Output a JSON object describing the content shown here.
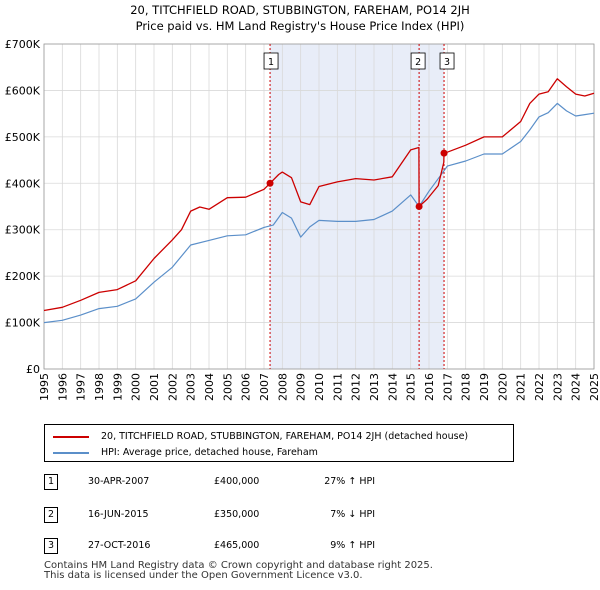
{
  "chart_data": {
    "type": "line",
    "title": "20, TITCHFIELD ROAD, STUBBINGTON, FAREHAM, PO14 2JH",
    "subtitle": "Price paid vs. HM Land Registry's House Price Index (HPI)",
    "xlim": [
      1995,
      2025
    ],
    "ylim": [
      0,
      700000
    ],
    "x_ticks": [
      1995,
      1996,
      1997,
      1998,
      1999,
      2000,
      2001,
      2002,
      2003,
      2004,
      2005,
      2006,
      2007,
      2008,
      2009,
      2010,
      2011,
      2012,
      2013,
      2014,
      2015,
      2016,
      2017,
      2018,
      2019,
      2020,
      2021,
      2022,
      2023,
      2024,
      2025
    ],
    "y_ticks": [
      0,
      100000,
      200000,
      300000,
      400000,
      500000,
      600000,
      700000
    ],
    "y_tick_labels": [
      "£0",
      "£100K",
      "£200K",
      "£300K",
      "£400K",
      "£500K",
      "£600K",
      "£700K"
    ],
    "shaded_region": [
      2007.33,
      2016.82
    ],
    "series": [
      {
        "name": "20, TITCHFIELD ROAD, STUBBINGTON, FAREHAM, PO14 2JH (detached house)",
        "color": "#cc0000",
        "x": [
          1995,
          1996,
          1997,
          1998,
          1999,
          2000,
          2001,
          2002,
          2002.5,
          2003,
          2003.5,
          2004,
          2005,
          2006,
          2007,
          2007.33,
          2007.8,
          2008,
          2008.5,
          2009,
          2009.5,
          2010,
          2011,
          2012,
          2013,
          2014,
          2015,
          2015.45,
          2015.46,
          2015.9,
          2016.5,
          2016.81,
          2016.82,
          2017,
          2018,
          2019,
          2020,
          2021,
          2021.5,
          2022,
          2022.5,
          2023,
          2023.5,
          2024,
          2024.5,
          2025
        ],
        "values": [
          126000,
          133000,
          148000,
          165000,
          171000,
          190000,
          238000,
          278000,
          300000,
          340000,
          349000,
          344000,
          369000,
          370000,
          387000,
          400000,
          419000,
          424000,
          412000,
          360000,
          354000,
          393000,
          403000,
          410000,
          407000,
          414000,
          472000,
          477000,
          350000,
          366000,
          395000,
          445000,
          465000,
          467000,
          482000,
          500000,
          500000,
          533000,
          572000,
          592000,
          597000,
          625000,
          608000,
          592000,
          588000,
          594000
        ]
      },
      {
        "name": "HPI: Average price, detached house, Fareham",
        "color": "#5b8fc9",
        "x": [
          1995,
          1996,
          1997,
          1998,
          1999,
          2000,
          2001,
          2002,
          2003,
          2004,
          2005,
          2006,
          2007,
          2007.5,
          2008,
          2008.5,
          2009,
          2009.5,
          2010,
          2011,
          2012,
          2013,
          2014,
          2015,
          2015.46,
          2016,
          2016.82,
          2017,
          2018,
          2019,
          2020,
          2021,
          2021.5,
          2022,
          2022.5,
          2023,
          2023.5,
          2024,
          2024.5,
          2025
        ],
        "values": [
          100000,
          105000,
          116000,
          130000,
          135000,
          151000,
          187000,
          219000,
          267000,
          277000,
          287000,
          289000,
          305000,
          310000,
          337000,
          325000,
          284000,
          306000,
          320000,
          318000,
          318000,
          322000,
          340000,
          375000,
          350000,
          383000,
          427000,
          437000,
          448000,
          463000,
          463000,
          490000,
          515000,
          543000,
          552000,
          572000,
          556000,
          545000,
          548000,
          551000
        ]
      }
    ],
    "sale_markers": [
      {
        "label": "1",
        "x": 2007.33,
        "value": 400000
      },
      {
        "label": "2",
        "x": 2015.46,
        "value": 350000
      },
      {
        "label": "3",
        "x": 2016.82,
        "value": 465000
      }
    ]
  },
  "legend": {
    "property_label": "20, TITCHFIELD ROAD, STUBBINGTON, FAREHAM, PO14 2JH (detached house)",
    "hpi_label": "HPI: Average price, detached house, Fareham"
  },
  "sales": [
    {
      "num": "1",
      "date": "30-APR-2007",
      "price": "£400,000",
      "hpi": "27% ↑ HPI"
    },
    {
      "num": "2",
      "date": "16-JUN-2015",
      "price": "£350,000",
      "hpi": "7% ↓ HPI"
    },
    {
      "num": "3",
      "date": "27-OCT-2016",
      "price": "£465,000",
      "hpi": "9% ↑ HPI"
    }
  ],
  "footer": "Contains HM Land Registry data © Crown copyright and database right 2025.\nThis data is licensed under the Open Government Licence v3.0."
}
